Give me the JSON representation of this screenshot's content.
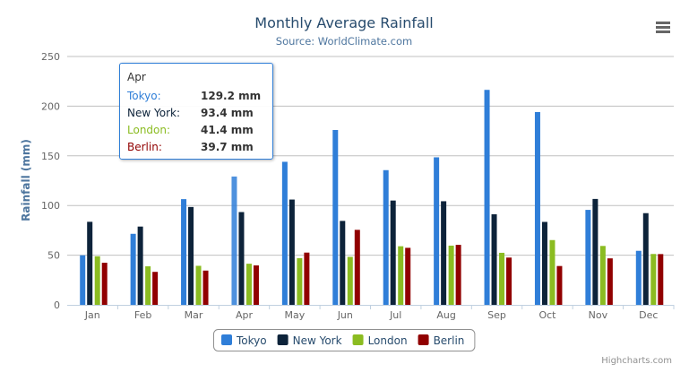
{
  "chart_data": {
    "type": "bar",
    "title": "Monthly Average Rainfall",
    "subtitle": "Source: WorldClimate.com",
    "xlabel": "",
    "ylabel": "Rainfall (mm)",
    "ylim": [
      0,
      250
    ],
    "yticks": [
      0,
      50,
      100,
      150,
      200,
      250
    ],
    "grid": true,
    "legend": "bottom-center",
    "categories": [
      "Jan",
      "Feb",
      "Mar",
      "Apr",
      "May",
      "Jun",
      "Jul",
      "Aug",
      "Sep",
      "Oct",
      "Nov",
      "Dec"
    ],
    "series": [
      {
        "name": "Tokyo",
        "color": "#2f7ed8",
        "values": [
          49.9,
          71.5,
          106.4,
          129.2,
          144.0,
          176.0,
          135.6,
          148.5,
          216.4,
          194.1,
          95.6,
          54.4
        ]
      },
      {
        "name": "New York",
        "color": "#0d233a",
        "values": [
          83.6,
          78.8,
          98.5,
          93.4,
          106.0,
          84.5,
          105.0,
          104.3,
          91.2,
          83.5,
          106.6,
          92.3
        ]
      },
      {
        "name": "London",
        "color": "#8bbc21",
        "values": [
          48.9,
          38.8,
          39.3,
          41.4,
          47.0,
          48.3,
          59.0,
          59.6,
          52.4,
          65.2,
          59.3,
          51.2
        ]
      },
      {
        "name": "Berlin",
        "color": "#910000",
        "values": [
          42.4,
          33.2,
          34.5,
          39.7,
          52.6,
          75.5,
          57.4,
          60.4,
          47.6,
          39.1,
          46.8,
          51.1
        ]
      }
    ]
  },
  "tooltip": {
    "header": "Apr",
    "rows": [
      {
        "name": "Tokyo:",
        "value": "129.2 mm"
      },
      {
        "name": "New York:",
        "value": "93.4 mm"
      },
      {
        "name": "London:",
        "value": "41.4 mm"
      },
      {
        "name": "Berlin:",
        "value": "39.7 mm"
      }
    ]
  },
  "credits": "Highcharts.com",
  "menu_icon": "hamburger-menu-icon"
}
